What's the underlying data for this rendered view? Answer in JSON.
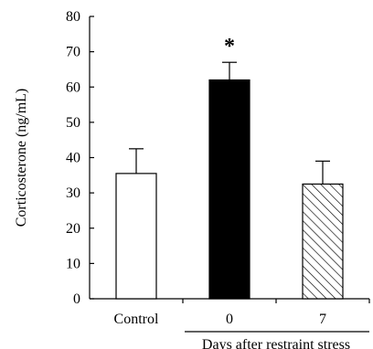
{
  "chart_data": {
    "type": "bar",
    "ylabel": "Corticosterone (ng/mL)",
    "ylim": [
      0,
      80
    ],
    "yticks": [
      0,
      10,
      20,
      30,
      40,
      50,
      60,
      70,
      80
    ],
    "categories": [
      "Control",
      "0",
      "7"
    ],
    "values": [
      35.5,
      62,
      32.5
    ],
    "errors": [
      7,
      5,
      6.5
    ],
    "group_label": "Days after restraint stress",
    "annotations": [
      {
        "category": "0",
        "text": "*"
      }
    ],
    "bar_styles": [
      {
        "fill": "#ffffff",
        "pattern": "none"
      },
      {
        "fill": "#000000",
        "pattern": "none"
      },
      {
        "fill": "#ffffff",
        "pattern": "diagonal-hatch"
      }
    ],
    "grid": false,
    "legend": "none"
  }
}
